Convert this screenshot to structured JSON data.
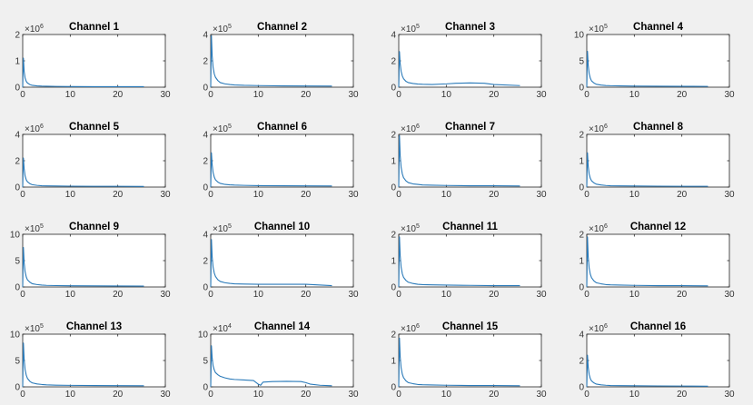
{
  "colors": {
    "background": "#f0f0f0",
    "axes_bg": "#ffffff",
    "line": "#2a7ab9",
    "frame": "#262626"
  },
  "chart_data": [
    {
      "type": "line",
      "title": "Channel 1",
      "xlim": [
        0,
        30
      ],
      "xticks": [
        0,
        10,
        20,
        30
      ],
      "ylim": [
        0,
        2
      ],
      "yticks": [
        0,
        1,
        2
      ],
      "multiplier": {
        "base": "×10",
        "exp": "6"
      },
      "x": [
        0,
        0.15,
        0.3,
        0.5,
        0.75,
        1,
        1.5,
        2,
        3,
        4,
        5,
        7,
        10,
        15,
        20,
        25.5
      ],
      "series": [
        {
          "values": [
            0,
            1.1,
            0.6,
            0.35,
            0.22,
            0.16,
            0.1,
            0.07,
            0.05,
            0.04,
            0.035,
            0.03,
            0.025,
            0.02,
            0.02,
            0.02
          ]
        }
      ]
    },
    {
      "type": "line",
      "title": "Channel 2",
      "xlim": [
        0,
        30
      ],
      "xticks": [
        0,
        10,
        20,
        30
      ],
      "ylim": [
        0,
        4
      ],
      "yticks": [
        0,
        2,
        4
      ],
      "multiplier": {
        "base": "×10",
        "exp": "5"
      },
      "x": [
        0,
        0.15,
        0.3,
        0.5,
        0.75,
        1,
        1.5,
        2,
        3,
        4,
        5,
        7,
        10,
        15,
        20,
        25.5
      ],
      "series": [
        {
          "values": [
            0,
            3.9,
            2.4,
            1.5,
            1.0,
            0.75,
            0.5,
            0.35,
            0.25,
            0.2,
            0.17,
            0.14,
            0.12,
            0.1,
            0.09,
            0.08
          ]
        }
      ]
    },
    {
      "type": "line",
      "title": "Channel 3",
      "xlim": [
        0,
        30
      ],
      "xticks": [
        0,
        10,
        20,
        30
      ],
      "ylim": [
        0,
        4
      ],
      "yticks": [
        0,
        2,
        4
      ],
      "multiplier": {
        "base": "×10",
        "exp": "5"
      },
      "x": [
        0,
        0.15,
        0.3,
        0.5,
        0.75,
        1,
        1.5,
        2,
        3,
        4,
        5,
        7,
        10,
        12,
        15,
        18,
        20,
        25.5
      ],
      "series": [
        {
          "values": [
            0,
            2.7,
            1.8,
            1.2,
            0.85,
            0.65,
            0.45,
            0.35,
            0.28,
            0.24,
            0.22,
            0.2,
            0.25,
            0.3,
            0.32,
            0.3,
            0.2,
            0.12
          ]
        }
      ]
    },
    {
      "type": "line",
      "title": "Channel 4",
      "xlim": [
        0,
        30
      ],
      "xticks": [
        0,
        10,
        20,
        30
      ],
      "ylim": [
        0,
        10
      ],
      "yticks": [
        0,
        5,
        10
      ],
      "multiplier": {
        "base": "×10",
        "exp": "5"
      },
      "x": [
        0,
        0.15,
        0.3,
        0.5,
        0.75,
        1,
        1.5,
        2,
        3,
        4,
        5,
        7,
        10,
        15,
        20,
        25.5
      ],
      "series": [
        {
          "values": [
            0,
            6.8,
            4.2,
            2.6,
            1.7,
            1.2,
            0.8,
            0.55,
            0.4,
            0.32,
            0.28,
            0.24,
            0.2,
            0.18,
            0.16,
            0.15
          ]
        }
      ]
    },
    {
      "type": "line",
      "title": "Channel 5",
      "xlim": [
        0,
        30
      ],
      "xticks": [
        0,
        10,
        20,
        30
      ],
      "ylim": [
        0,
        4
      ],
      "yticks": [
        0,
        2,
        4
      ],
      "multiplier": {
        "base": "×10",
        "exp": "6"
      },
      "x": [
        0,
        0.15,
        0.3,
        0.5,
        0.75,
        1,
        1.5,
        2,
        3,
        4,
        5,
        7,
        10,
        15,
        20,
        25.5
      ],
      "series": [
        {
          "values": [
            0,
            2.2,
            1.4,
            0.85,
            0.55,
            0.4,
            0.26,
            0.18,
            0.13,
            0.1,
            0.09,
            0.08,
            0.07,
            0.06,
            0.06,
            0.05
          ]
        }
      ]
    },
    {
      "type": "line",
      "title": "Channel 6",
      "xlim": [
        0,
        30
      ],
      "xticks": [
        0,
        10,
        20,
        30
      ],
      "ylim": [
        0,
        4
      ],
      "yticks": [
        0,
        2,
        4
      ],
      "multiplier": {
        "base": "×10",
        "exp": "5"
      },
      "x": [
        0,
        0.15,
        0.3,
        0.5,
        0.75,
        1,
        1.5,
        2,
        3,
        4,
        5,
        7,
        10,
        15,
        20,
        25.5
      ],
      "series": [
        {
          "values": [
            0,
            2.6,
            1.7,
            1.1,
            0.75,
            0.55,
            0.38,
            0.28,
            0.2,
            0.17,
            0.15,
            0.13,
            0.11,
            0.1,
            0.09,
            0.08
          ]
        }
      ]
    },
    {
      "type": "line",
      "title": "Channel 7",
      "xlim": [
        0,
        30
      ],
      "xticks": [
        0,
        10,
        20,
        30
      ],
      "ylim": [
        0,
        2
      ],
      "yticks": [
        0,
        1,
        2
      ],
      "multiplier": {
        "base": "×10",
        "exp": "6"
      },
      "x": [
        0,
        0.15,
        0.3,
        0.5,
        0.75,
        1,
        1.5,
        2,
        3,
        4,
        5,
        7,
        10,
        15,
        20,
        25.5
      ],
      "series": [
        {
          "values": [
            0,
            1.95,
            1.2,
            0.75,
            0.5,
            0.36,
            0.24,
            0.17,
            0.12,
            0.1,
            0.08,
            0.07,
            0.06,
            0.05,
            0.05,
            0.04
          ]
        }
      ]
    },
    {
      "type": "line",
      "title": "Channel 8",
      "xlim": [
        0,
        30
      ],
      "xticks": [
        0,
        10,
        20,
        30
      ],
      "ylim": [
        0,
        2
      ],
      "yticks": [
        0,
        1,
        2
      ],
      "multiplier": {
        "base": "×10",
        "exp": "6"
      },
      "x": [
        0,
        0.15,
        0.3,
        0.5,
        0.75,
        1,
        1.5,
        2,
        3,
        4,
        5,
        7,
        10,
        15,
        20,
        25.5
      ],
      "series": [
        {
          "values": [
            0,
            1.3,
            0.8,
            0.5,
            0.33,
            0.24,
            0.16,
            0.11,
            0.08,
            0.06,
            0.05,
            0.045,
            0.04,
            0.035,
            0.03,
            0.03
          ]
        }
      ]
    },
    {
      "type": "line",
      "title": "Channel 9",
      "xlim": [
        0,
        30
      ],
      "xticks": [
        0,
        10,
        20,
        30
      ],
      "ylim": [
        0,
        10
      ],
      "yticks": [
        0,
        5,
        10
      ],
      "multiplier": {
        "base": "×10",
        "exp": "5"
      },
      "x": [
        0,
        0.15,
        0.3,
        0.5,
        0.75,
        1,
        1.5,
        2,
        3,
        4,
        5,
        7,
        10,
        15,
        20,
        25.5
      ],
      "series": [
        {
          "values": [
            0,
            7.5,
            4.6,
            2.9,
            1.9,
            1.35,
            0.9,
            0.62,
            0.45,
            0.36,
            0.3,
            0.26,
            0.22,
            0.2,
            0.18,
            0.16
          ]
        }
      ]
    },
    {
      "type": "line",
      "title": "Channel 10",
      "xlim": [
        0,
        30
      ],
      "xticks": [
        0,
        10,
        20,
        30
      ],
      "ylim": [
        0,
        4
      ],
      "yticks": [
        0,
        2,
        4
      ],
      "multiplier": {
        "base": "×10",
        "exp": "5"
      },
      "x": [
        0,
        0.15,
        0.3,
        0.5,
        0.75,
        1,
        1.5,
        2,
        3,
        4,
        5,
        7,
        10,
        15,
        20,
        25.5
      ],
      "series": [
        {
          "values": [
            0,
            3.6,
            2.3,
            1.5,
            1.05,
            0.8,
            0.55,
            0.42,
            0.32,
            0.27,
            0.24,
            0.22,
            0.2,
            0.2,
            0.2,
            0.1
          ]
        }
      ]
    },
    {
      "type": "line",
      "title": "Channel 11",
      "xlim": [
        0,
        30
      ],
      "xticks": [
        0,
        10,
        20,
        30
      ],
      "ylim": [
        0,
        2
      ],
      "yticks": [
        0,
        1,
        2
      ],
      "multiplier": {
        "base": "×10",
        "exp": "5"
      },
      "x": [
        0,
        0.15,
        0.3,
        0.5,
        0.75,
        1,
        1.5,
        2,
        3,
        4,
        5,
        7,
        10,
        15,
        20,
        25.5
      ],
      "series": [
        {
          "values": [
            0,
            1.9,
            1.2,
            0.75,
            0.5,
            0.37,
            0.25,
            0.18,
            0.13,
            0.1,
            0.09,
            0.08,
            0.07,
            0.06,
            0.05,
            0.05
          ]
        }
      ]
    },
    {
      "type": "line",
      "title": "Channel 12",
      "xlim": [
        0,
        30
      ],
      "xticks": [
        0,
        10,
        20,
        30
      ],
      "ylim": [
        0,
        2
      ],
      "yticks": [
        0,
        1,
        2
      ],
      "multiplier": {
        "base": "×10",
        "exp": "6"
      },
      "x": [
        0,
        0.15,
        0.3,
        0.5,
        0.75,
        1,
        1.5,
        2,
        3,
        4,
        5,
        7,
        10,
        15,
        20,
        25.5
      ],
      "series": [
        {
          "values": [
            0,
            1.9,
            1.15,
            0.72,
            0.48,
            0.35,
            0.23,
            0.16,
            0.12,
            0.09,
            0.08,
            0.07,
            0.06,
            0.05,
            0.05,
            0.04
          ]
        }
      ]
    },
    {
      "type": "line",
      "title": "Channel 13",
      "xlim": [
        0,
        30
      ],
      "xticks": [
        0,
        10,
        20,
        30
      ],
      "ylim": [
        0,
        10
      ],
      "yticks": [
        0,
        5,
        10
      ],
      "multiplier": {
        "base": "×10",
        "exp": "5"
      },
      "x": [
        0,
        0.15,
        0.3,
        0.5,
        0.75,
        1,
        1.5,
        2,
        3,
        4,
        5,
        7,
        10,
        15,
        20,
        25.5
      ],
      "series": [
        {
          "values": [
            0,
            8.3,
            5.2,
            3.3,
            2.2,
            1.6,
            1.05,
            0.75,
            0.55,
            0.45,
            0.38,
            0.32,
            0.28,
            0.25,
            0.22,
            0.2
          ]
        }
      ]
    },
    {
      "type": "line",
      "title": "Channel 14",
      "xlim": [
        0,
        30
      ],
      "xticks": [
        0,
        10,
        20,
        30
      ],
      "ylim": [
        0,
        10
      ],
      "yticks": [
        0,
        5,
        10
      ],
      "multiplier": {
        "base": "×10",
        "exp": "4"
      },
      "x": [
        0,
        0.15,
        0.3,
        0.5,
        0.75,
        1,
        1.5,
        2,
        3,
        4,
        5,
        7,
        9,
        10,
        10.5,
        11,
        13,
        16,
        19,
        20,
        21,
        23,
        25.5
      ],
      "series": [
        {
          "values": [
            0,
            7.8,
            5.5,
            4.0,
            3.2,
            2.7,
            2.3,
            2.0,
            1.7,
            1.5,
            1.4,
            1.3,
            1.2,
            0.5,
            0.3,
            0.9,
            1.0,
            1.05,
            1.0,
            0.8,
            0.5,
            0.3,
            0.2
          ]
        }
      ]
    },
    {
      "type": "line",
      "title": "Channel 15",
      "xlim": [
        0,
        30
      ],
      "xticks": [
        0,
        10,
        20,
        30
      ],
      "ylim": [
        0,
        2
      ],
      "yticks": [
        0,
        1,
        2
      ],
      "multiplier": {
        "base": "×10",
        "exp": "6"
      },
      "x": [
        0,
        0.15,
        0.3,
        0.5,
        0.75,
        1,
        1.5,
        2,
        3,
        4,
        5,
        7,
        10,
        15,
        20,
        25.5
      ],
      "series": [
        {
          "values": [
            0,
            1.85,
            1.15,
            0.72,
            0.48,
            0.35,
            0.23,
            0.16,
            0.12,
            0.09,
            0.08,
            0.07,
            0.06,
            0.05,
            0.05,
            0.04
          ]
        }
      ]
    },
    {
      "type": "line",
      "title": "Channel 16",
      "xlim": [
        0,
        30
      ],
      "xticks": [
        0,
        10,
        20,
        30
      ],
      "ylim": [
        0,
        4
      ],
      "yticks": [
        0,
        2,
        4
      ],
      "multiplier": {
        "base": "×10",
        "exp": "6"
      },
      "x": [
        0,
        0.15,
        0.3,
        0.5,
        0.75,
        1,
        1.5,
        2,
        3,
        4,
        5,
        7,
        10,
        15,
        20,
        25.5
      ],
      "series": [
        {
          "values": [
            0,
            2.4,
            1.5,
            0.95,
            0.62,
            0.45,
            0.3,
            0.21,
            0.15,
            0.12,
            0.1,
            0.09,
            0.08,
            0.07,
            0.06,
            0.05
          ]
        }
      ]
    }
  ]
}
